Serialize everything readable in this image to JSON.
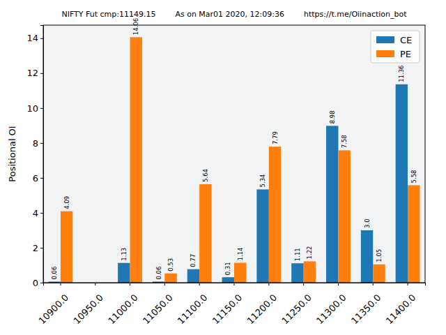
{
  "chart_data": {
    "type": "bar",
    "title": "NIFTY Fut cmp:11149.15        As on Mar01 2020, 12:09:36        https://t.me/Oiinaction_bot",
    "y_label": "Positional OI",
    "categories": [
      "10900.0",
      "10950.0",
      "11000.0",
      "11050.0",
      "11100.0",
      "11150.0",
      "11200.0",
      "11250.0",
      "11300.0",
      "11350.0",
      "11400.0"
    ],
    "series": [
      {
        "name": "CE",
        "color": "#1f77b4",
        "values": [
          0.06,
          null,
          1.13,
          0.06,
          0.77,
          0.31,
          5.34,
          1.11,
          8.98,
          3.0,
          11.36
        ],
        "value_labels": [
          "0.06",
          null,
          "1.13",
          "0.06",
          "0.77",
          "0.31",
          "5.34",
          "1.11",
          "8.98",
          "3.0",
          "11.36"
        ]
      },
      {
        "name": "PE",
        "color": "#ff7f0e",
        "values": [
          4.09,
          null,
          14.06,
          0.53,
          5.64,
          1.14,
          7.79,
          1.22,
          7.58,
          1.05,
          5.58
        ]
      }
    ],
    "ylim": [
      0,
      14.75
    ],
    "yticks": [
      0,
      2,
      4,
      6,
      8,
      10,
      12,
      14
    ],
    "data_labels": true,
    "legend": "upper right",
    "grid": false
  }
}
